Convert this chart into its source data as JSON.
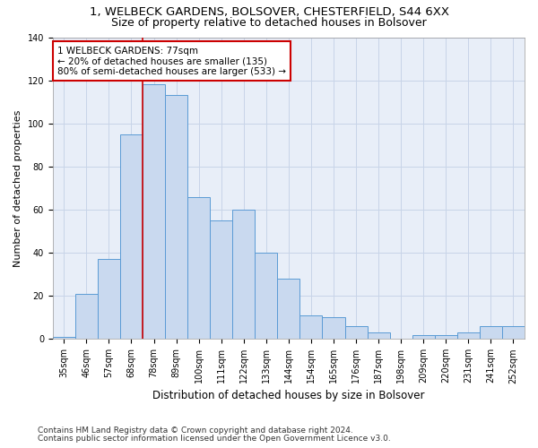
{
  "title1": "1, WELBECK GARDENS, BOLSOVER, CHESTERFIELD, S44 6XX",
  "title2": "Size of property relative to detached houses in Bolsover",
  "xlabel": "Distribution of detached houses by size in Bolsover",
  "ylabel": "Number of detached properties",
  "bar_labels": [
    "35sqm",
    "46sqm",
    "57sqm",
    "68sqm",
    "78sqm",
    "89sqm",
    "100sqm",
    "111sqm",
    "122sqm",
    "133sqm",
    "144sqm",
    "154sqm",
    "165sqm",
    "176sqm",
    "187sqm",
    "198sqm",
    "209sqm",
    "220sqm",
    "231sqm",
    "241sqm",
    "252sqm"
  ],
  "bar_values": [
    1,
    21,
    37,
    95,
    118,
    113,
    66,
    55,
    60,
    40,
    28,
    11,
    10,
    6,
    3,
    0,
    2,
    2,
    3,
    6,
    6
  ],
  "bar_color": "#c9d9ef",
  "bar_edge_color": "#5b9bd5",
  "vline_color": "#cc0000",
  "annotation_text": "1 WELBECK GARDENS: 77sqm\n← 20% of detached houses are smaller (135)\n80% of semi-detached houses are larger (533) →",
  "annotation_box_color": "white",
  "annotation_box_edge_color": "#cc0000",
  "ylim": [
    0,
    140
  ],
  "yticks": [
    0,
    20,
    40,
    60,
    80,
    100,
    120,
    140
  ],
  "grid_color": "#c8d4e8",
  "background_color": "#e8eef8",
  "footnote1": "Contains HM Land Registry data © Crown copyright and database right 2024.",
  "footnote2": "Contains public sector information licensed under the Open Government Licence v3.0.",
  "title1_fontsize": 9.5,
  "title2_fontsize": 9,
  "xlabel_fontsize": 8.5,
  "ylabel_fontsize": 8,
  "tick_fontsize": 7,
  "annotation_fontsize": 7.5,
  "footnote_fontsize": 6.5
}
